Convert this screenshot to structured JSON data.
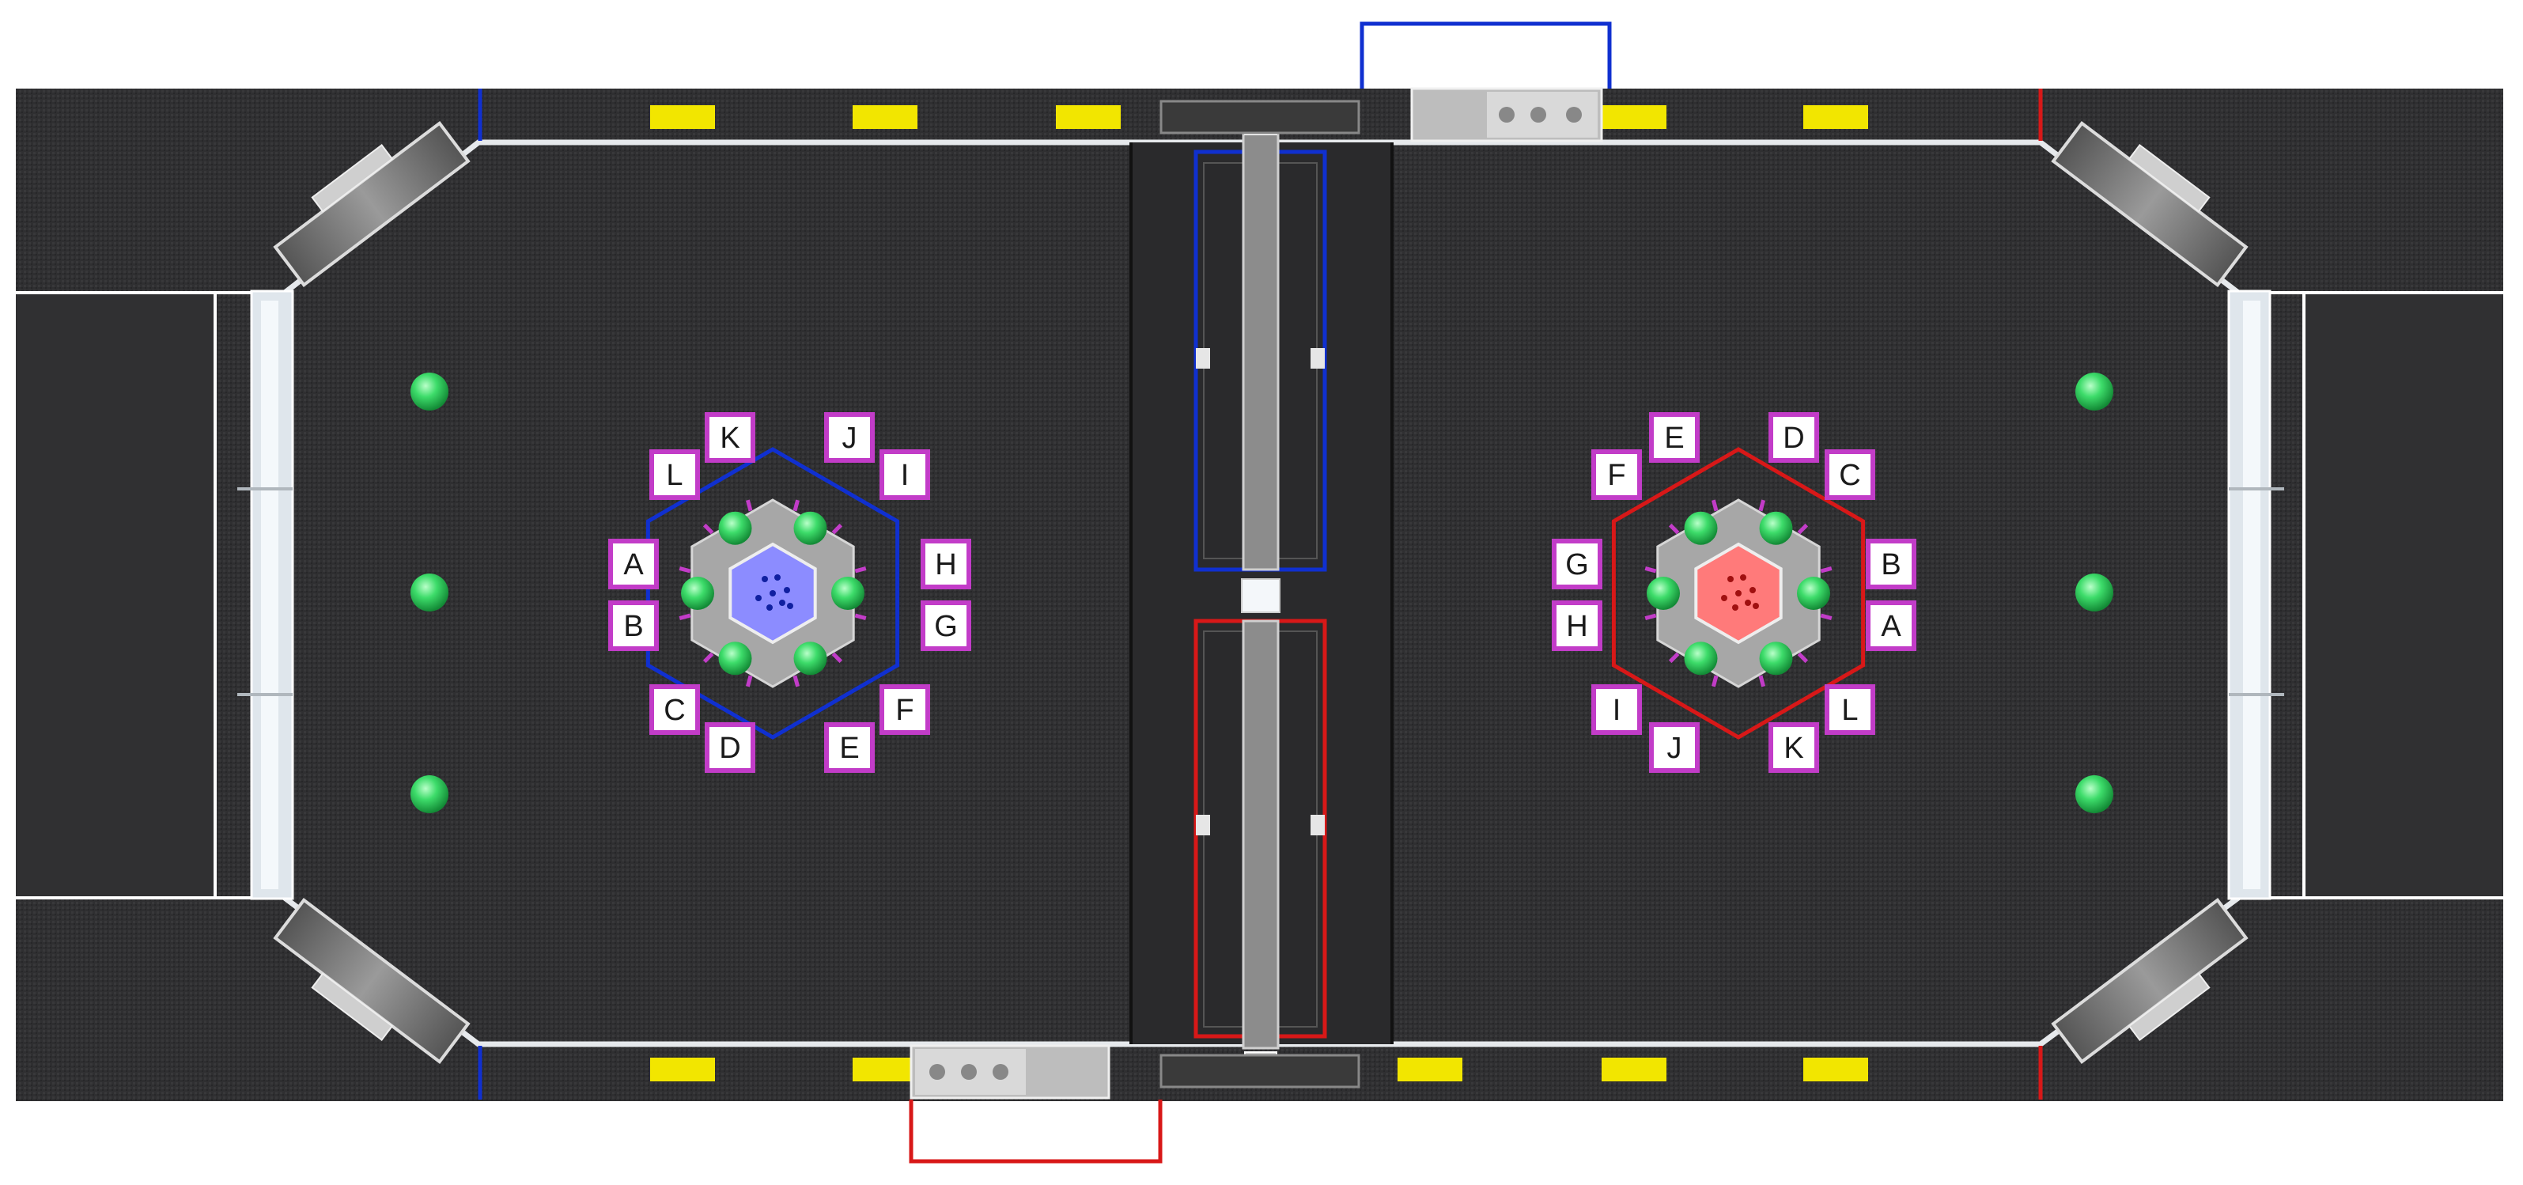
{
  "colors": {
    "carpet": "#2f2f31",
    "carpet_dark": "#262628",
    "wall": "#e8ecef",
    "blue_alliance": "#1030d0",
    "red_alliance": "#d81818",
    "label_border": "#c23cc8",
    "ball": "#3ddc6a",
    "yellow_marker": "#f2e600",
    "blue_hub": "#8c8cff",
    "red_hub": "#ff7a7a",
    "hex_gray": "#a7a7a7"
  },
  "blue_hub": {
    "labels": [
      "A",
      "B",
      "C",
      "D",
      "E",
      "F",
      "G",
      "H",
      "I",
      "J",
      "K",
      "L"
    ]
  },
  "red_hub": {
    "labels": [
      "A",
      "B",
      "C",
      "D",
      "E",
      "F",
      "G",
      "H",
      "I",
      "J",
      "K",
      "L"
    ]
  },
  "icons": {
    "ball": "ball-icon",
    "yellow_marker": "marker-icon",
    "goal_frame": "goal-frame-icon"
  }
}
